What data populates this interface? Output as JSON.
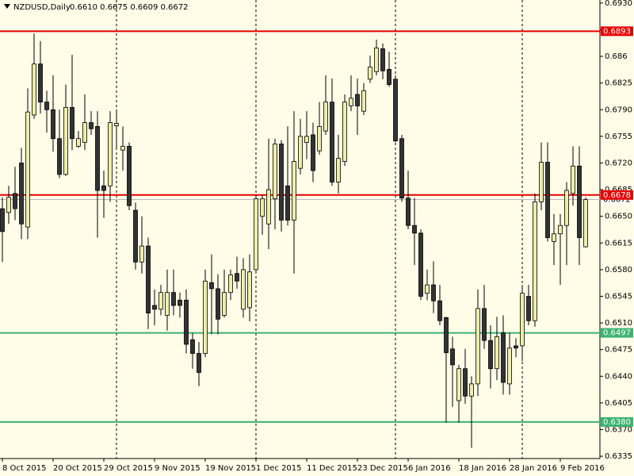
{
  "chart_data": {
    "type": "candlestick",
    "title": "NZDUSD,Daily",
    "subtitle": "0.6610 0.6675 0.6609 0.6672",
    "categories": [
      "8 Oct 2015",
      null,
      null,
      null,
      null,
      null,
      null,
      null,
      "20 Oct 2015",
      null,
      null,
      null,
      null,
      null,
      null,
      null,
      "29 Oct 2015",
      null,
      null,
      null,
      null,
      null,
      null,
      null,
      "9 Nov 2015",
      null,
      null,
      null,
      null,
      null,
      null,
      null,
      "19 Nov 2015",
      null,
      null,
      null,
      null,
      null,
      null,
      null,
      "1 Dec 2015",
      null,
      null,
      null,
      null,
      null,
      null,
      null,
      "11 Dec 2015",
      null,
      null,
      null,
      null,
      null,
      null,
      null,
      "23 Dec 2015",
      null,
      null,
      null,
      null,
      null,
      null,
      null,
      "6 Jan 2016",
      null,
      null,
      null,
      null,
      null,
      null,
      null,
      "18 Jan 2016",
      null,
      null,
      null,
      null,
      null,
      null,
      null,
      "28 Jan 2016",
      null,
      null,
      null,
      null,
      null,
      null,
      null,
      "9 Feb 2016",
      null,
      null,
      null,
      null
    ],
    "open": [
      0.666,
      0.6655,
      0.668,
      0.672,
      0.6636,
      0.6783,
      0.685,
      0.68,
      0.679,
      0.6752,
      0.6705,
      0.6793,
      0.6742,
      0.6747,
      0.6773,
      0.6768,
      0.669,
      0.669,
      0.6769,
      0.6737,
      0.6742,
      0.6658,
      0.659,
      0.6611,
      0.6533,
      0.6528,
      0.652,
      0.655,
      0.654,
      0.654,
      0.6488,
      0.647,
      0.647,
      0.6563,
      0.6555,
      0.652,
      0.655,
      0.6575,
      0.6528,
      0.653,
      0.658,
      0.665,
      0.664,
      0.6673,
      0.6745,
      0.669,
      0.6645,
      0.6713,
      0.6747,
      0.6757,
      0.6736,
      0.6762,
      0.68,
      0.6695,
      0.6722,
      0.6795,
      0.681,
      0.6788,
      0.683,
      0.684,
      0.687,
      0.6843,
      0.683,
      0.6752,
      0.6674,
      0.6638,
      0.6628,
      0.6549,
      0.656,
      0.6539,
      0.6517,
      0.6476,
      0.6408,
      0.645,
      0.6414,
      0.643,
      0.6529,
      0.6487,
      0.645,
      0.6497,
      0.643,
      0.648,
      0.648,
      0.6545,
      0.6513,
      0.6669,
      0.6721,
      0.6617,
      0.6627,
      0.6638,
      0.668,
      0.6716,
      0.661
    ],
    "high": [
      0.6675,
      0.669,
      0.6715,
      0.674,
      0.6818,
      0.689,
      0.688,
      0.6815,
      0.6835,
      0.679,
      0.6823,
      0.6862,
      0.6762,
      0.681,
      0.6788,
      0.6788,
      0.671,
      0.6788,
      0.679,
      0.6768,
      0.6747,
      0.6668,
      0.665,
      0.6622,
      0.6554,
      0.656,
      0.658,
      0.658,
      0.655,
      0.6554,
      0.6497,
      0.6485,
      0.658,
      0.66,
      0.6574,
      0.658,
      0.658,
      0.6597,
      0.6595,
      0.66,
      0.6678,
      0.6678,
      0.6752,
      0.6752,
      0.675,
      0.6768,
      0.6788,
      0.6778,
      0.6788,
      0.6773,
      0.68,
      0.6835,
      0.6831,
      0.6757,
      0.681,
      0.6835,
      0.6831,
      0.6825,
      0.6861,
      0.6882,
      0.6877,
      0.6866,
      0.6835,
      0.6757,
      0.671,
      0.6674,
      0.6633,
      0.658,
      0.6591,
      0.656,
      0.6518,
      0.6492,
      0.6455,
      0.6476,
      0.644,
      0.6554,
      0.656,
      0.6507,
      0.6518,
      0.652,
      0.6497,
      0.649,
      0.656,
      0.656,
      0.668,
      0.6747,
      0.6747,
      0.6653,
      0.6653,
      0.6695,
      0.6742,
      0.6742,
      0.6675
    ],
    "low": [
      0.659,
      0.664,
      0.6645,
      0.662,
      0.662,
      0.6778,
      0.6785,
      0.676,
      0.6735,
      0.67,
      0.6703,
      0.6737,
      0.674,
      0.6737,
      0.6757,
      0.6622,
      0.6648,
      0.6669,
      0.674,
      0.671,
      0.6658,
      0.658,
      0.6575,
      0.6502,
      0.6507,
      0.652,
      0.65,
      0.652,
      0.6517,
      0.647,
      0.645,
      0.6427,
      0.6465,
      0.6495,
      0.6495,
      0.6517,
      0.654,
      0.6555,
      0.6517,
      0.6512,
      0.6575,
      0.6626,
      0.6607,
      0.6633,
      0.663,
      0.6638,
      0.6575,
      0.6705,
      0.6725,
      0.6695,
      0.6731,
      0.6757,
      0.669,
      0.668,
      0.6716,
      0.6788,
      0.6757,
      0.6783,
      0.6825,
      0.6835,
      0.683,
      0.682,
      0.6747,
      0.6669,
      0.6633,
      0.6586,
      0.654,
      0.654,
      0.6523,
      0.6507,
      0.6379,
      0.64,
      0.6379,
      0.6404,
      0.6346,
      0.6414,
      0.6476,
      0.6424,
      0.6435,
      0.6416,
      0.6416,
      0.6465,
      0.646,
      0.6507,
      0.6505,
      0.6658,
      0.6617,
      0.6586,
      0.656,
      0.6586,
      0.6664,
      0.6586,
      0.6609
    ],
    "close": [
      0.663,
      0.6675,
      0.666,
      0.664,
      0.6787,
      0.685,
      0.68,
      0.679,
      0.6752,
      0.6705,
      0.6793,
      0.6752,
      0.6752,
      0.6773,
      0.6765,
      0.6684,
      0.6684,
      0.6773,
      0.6772,
      0.6742,
      0.6664,
      0.659,
      0.6611,
      0.6523,
      0.6528,
      0.655,
      0.655,
      0.6533,
      0.6533,
      0.6482,
      0.647,
      0.6445,
      0.6565,
      0.6555,
      0.6515,
      0.655,
      0.6573,
      0.6565,
      0.658,
      0.6577,
      0.6673,
      0.6673,
      0.6685,
      0.6745,
      0.6645,
      0.6645,
      0.6722,
      0.6755,
      0.6755,
      0.671,
      0.6768,
      0.68,
      0.6695,
      0.6726,
      0.68,
      0.6805,
      0.6795,
      0.6815,
      0.6846,
      0.6871,
      0.6841,
      0.6823,
      0.6749,
      0.6674,
      0.6638,
      0.6628,
      0.6545,
      0.656,
      0.6539,
      0.6513,
      0.6471,
      0.6455,
      0.645,
      0.6414,
      0.643,
      0.6529,
      0.6487,
      0.645,
      0.6492,
      0.6432,
      0.6477,
      0.6477,
      0.6549,
      0.6513,
      0.6669,
      0.6721,
      0.6622,
      0.6627,
      0.6638,
      0.6684,
      0.6716,
      0.6622,
      0.6672
    ],
    "up_color": "#eeeea8",
    "down_color": "#333333",
    "ylim": [
      0.6332,
      0.6934
    ],
    "yticks": [
      {
        "value": 0.693,
        "label": "0.6930"
      },
      0.6895,
      0.686,
      0.6825,
      {
        "value": 0.679,
        "label": "0.6790"
      },
      0.6755,
      {
        "value": 0.672,
        "label": "0.6720"
      },
      0.6685,
      {
        "value": 0.665,
        "label": "0.6650"
      },
      0.6615,
      {
        "value": 0.658,
        "label": "0.6580"
      },
      0.6545,
      {
        "value": 0.651,
        "label": "0.6510"
      },
      0.6475,
      {
        "value": 0.644,
        "label": "0.6440"
      },
      0.6405,
      {
        "value": 0.637,
        "label": "0.6370"
      },
      0.6335
    ],
    "levels": [
      {
        "value": 0.6893,
        "color": "#e60000"
      },
      {
        "value": 0.6678,
        "color": "#e60000"
      },
      {
        "value": 0.6497,
        "color": "#3cb371"
      },
      {
        "value": 0.638,
        "label": "0.6380",
        "color": "#3cb371"
      }
    ],
    "current_price": 0.6672,
    "grid": false
  }
}
